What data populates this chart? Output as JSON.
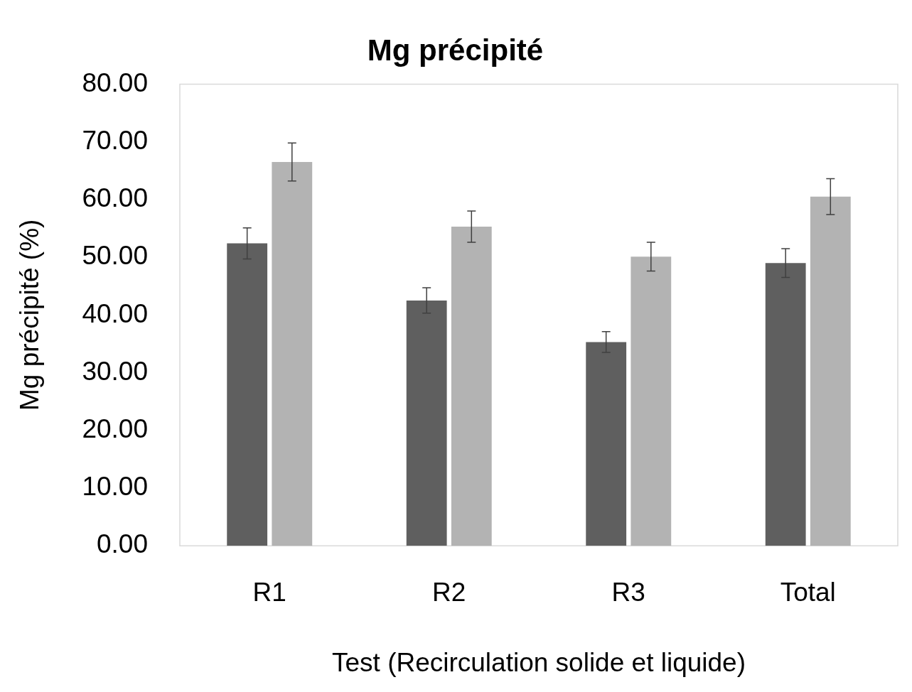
{
  "chart_data": {
    "type": "bar",
    "title": "Mg précipité",
    "xlabel": "Test (Recirculation solide et liquide)",
    "ylabel": "Mg précipité (%)",
    "categories": [
      "R1",
      "R2",
      "R3",
      "Total"
    ],
    "series": [
      {
        "color": "#5f5f5f",
        "values": [
          52.4,
          42.5,
          35.3,
          49.0
        ],
        "errors": [
          2.7,
          2.2,
          1.8,
          2.5
        ]
      },
      {
        "color": "#b3b3b3",
        "values": [
          66.5,
          55.3,
          50.1,
          60.5
        ],
        "errors": [
          3.3,
          2.7,
          2.5,
          3.1
        ]
      }
    ],
    "ylim": [
      0,
      80
    ],
    "yticks": [
      {
        "value": 0,
        "label": "0.00"
      },
      {
        "value": 10,
        "label": "10.00"
      },
      {
        "value": 20,
        "label": "20.00"
      },
      {
        "value": 30,
        "label": "30.00"
      },
      {
        "value": 40,
        "label": "40.00"
      },
      {
        "value": 50,
        "label": "50.00"
      },
      {
        "value": 60,
        "label": "60.00"
      },
      {
        "value": 70,
        "label": "70.00"
      },
      {
        "value": 80,
        "label": "80.00"
      }
    ],
    "grid": false,
    "legend": false
  }
}
